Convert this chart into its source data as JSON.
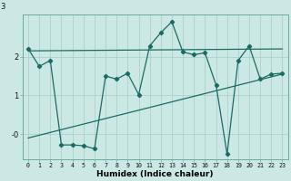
{
  "xlabel": "Humidex (Indice chaleur)",
  "bg_color": "#cce8e4",
  "grid_color": "#a8ccc8",
  "line_color": "#1a6b64",
  "marker_color": "#1a6b64",
  "x": [
    0,
    1,
    2,
    3,
    4,
    5,
    6,
    7,
    8,
    9,
    10,
    11,
    12,
    13,
    14,
    15,
    16,
    17,
    18,
    19,
    20,
    21,
    22,
    23
  ],
  "y_main": [
    2.2,
    1.75,
    1.9,
    -0.28,
    -0.28,
    -0.3,
    -0.38,
    1.5,
    1.42,
    1.57,
    1.02,
    2.28,
    2.62,
    2.9,
    2.12,
    2.05,
    2.1,
    1.27,
    -0.52,
    1.9,
    2.28,
    1.42,
    1.55,
    1.57
  ],
  "trend1_x": [
    0,
    23
  ],
  "trend1_y": [
    -0.1,
    1.55
  ],
  "trend2_x": [
    0,
    23
  ],
  "trend2_y": [
    2.15,
    2.2
  ],
  "ylim": [
    -0.65,
    3.1
  ],
  "xlim": [
    -0.5,
    23.5
  ],
  "ytick_vals": [
    0.0,
    1.0,
    2.0
  ],
  "ytick_labels": [
    "-0",
    "1",
    "2"
  ],
  "y_top_label": "3",
  "xtick_labels": [
    "0",
    "1",
    "2",
    "3",
    "4",
    "5",
    "6",
    "7",
    "8",
    "9",
    "10",
    "11",
    "12",
    "13",
    "14",
    "15",
    "16",
    "17",
    "18",
    "19",
    "20",
    "21",
    "22",
    "23"
  ]
}
